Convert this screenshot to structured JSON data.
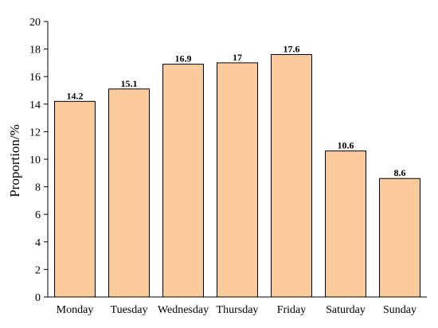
{
  "chart_data": {
    "type": "bar",
    "categories": [
      "Monday",
      "Tuesday",
      "Wednesday",
      "Thursday",
      "Friday",
      "Saturday",
      "Sunday"
    ],
    "values": [
      14.2,
      15.1,
      16.9,
      17,
      17.6,
      10.6,
      8.6
    ],
    "value_labels": [
      "14.2",
      "15.1",
      "16.9",
      "17",
      "17.6",
      "10.6",
      "8.6"
    ],
    "title": "",
    "xlabel": "",
    "ylabel": "Proportion/%",
    "ylim": [
      0,
      20
    ],
    "yticks": [
      0,
      2,
      4,
      6,
      8,
      10,
      12,
      14,
      16,
      18,
      20
    ],
    "grid": false,
    "bar_color": "#FCCB9C",
    "bar_edge_color": "#000000"
  }
}
